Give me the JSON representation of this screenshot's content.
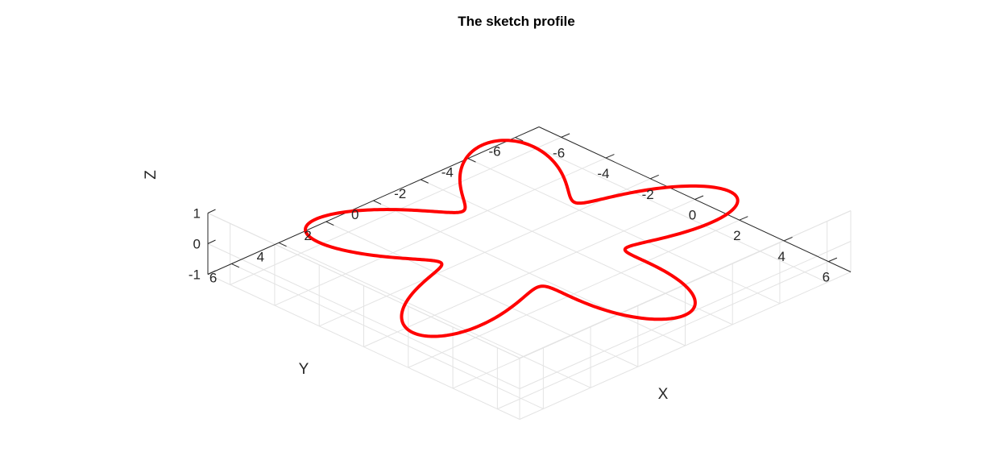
{
  "chart_data": {
    "type": "line",
    "projection": "3d",
    "title": "The sketch profile",
    "xlabel": "X",
    "ylabel": "Y",
    "zlabel": "Z",
    "xlim": [
      -7,
      7
    ],
    "ylim": [
      -7,
      7
    ],
    "zlim": [
      -1,
      1
    ],
    "xticks": [
      -6,
      -4,
      -2,
      0,
      2,
      4,
      6
    ],
    "yticks": [
      -6,
      -4,
      -2,
      0,
      2,
      4,
      6
    ],
    "zticks": [
      -1,
      0,
      1
    ],
    "xtick_labels": [
      "-6",
      "-4",
      "-2",
      "0",
      "2",
      "4",
      "6"
    ],
    "ytick_labels": [
      "-6",
      "-4",
      "-2",
      "0",
      "2",
      "4",
      "6"
    ],
    "ztick_labels": [
      "-1",
      "0",
      "1"
    ],
    "grid": true,
    "series": [
      {
        "curve": "polar",
        "r": "5 + 2*cos(5*theta)",
        "z": 0,
        "theta_range": [
          0,
          6.2832
        ],
        "color": "#ff0000"
      }
    ]
  }
}
